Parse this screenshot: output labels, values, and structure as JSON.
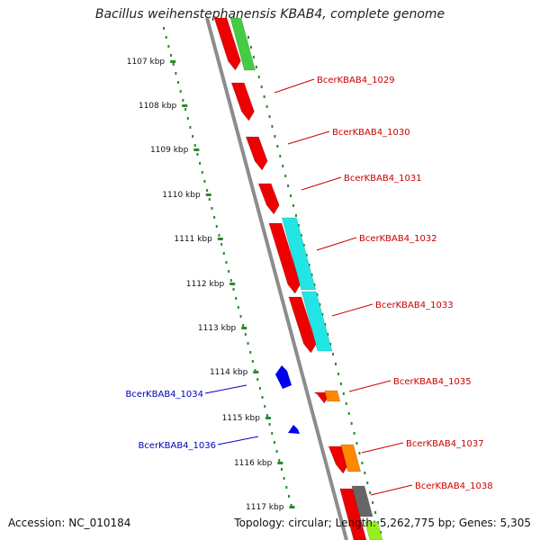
{
  "title": "Bacillus weihenstephanensis KBAB4, complete genome",
  "footer": {
    "accession": "Accession: NC_010184",
    "topology": "Topology: circular; Length: 5,262,775 bp; Genes: 5,305"
  },
  "colors": {
    "backbone": "#8c8c8c",
    "ruler": "#2a8a2a",
    "forward_label": "#cc0000",
    "reverse_label": "#0000bb",
    "gene_red": "#ee0000",
    "gene_cyan": "#22e5e5",
    "gene_green": "#44cc44",
    "gene_orange": "#ff8800",
    "gene_gray": "#666666",
    "gene_blue": "#0000ee"
  },
  "ruler_ticks": [
    "1107 kbp",
    "1108 kbp",
    "1109 kbp",
    "1110 kbp",
    "1111 kbp",
    "1112 kbp",
    "1113 kbp",
    "1114 kbp",
    "1115 kbp",
    "1116 kbp",
    "1117 kbp"
  ],
  "gene_labels": [
    {
      "text": "BcerKBAB4_1029",
      "strand": "forward"
    },
    {
      "text": "BcerKBAB4_1030",
      "strand": "forward"
    },
    {
      "text": "BcerKBAB4_1031",
      "strand": "forward"
    },
    {
      "text": "BcerKBAB4_1032",
      "strand": "forward"
    },
    {
      "text": "BcerKBAB4_1033",
      "strand": "forward"
    },
    {
      "text": "BcerKBAB4_1034",
      "strand": "reverse"
    },
    {
      "text": "BcerKBAB4_1035",
      "strand": "forward"
    },
    {
      "text": "BcerKBAB4_1036",
      "strand": "reverse"
    },
    {
      "text": "BcerKBAB4_1037",
      "strand": "forward"
    },
    {
      "text": "BcerKBAB4_1038",
      "strand": "forward"
    }
  ]
}
